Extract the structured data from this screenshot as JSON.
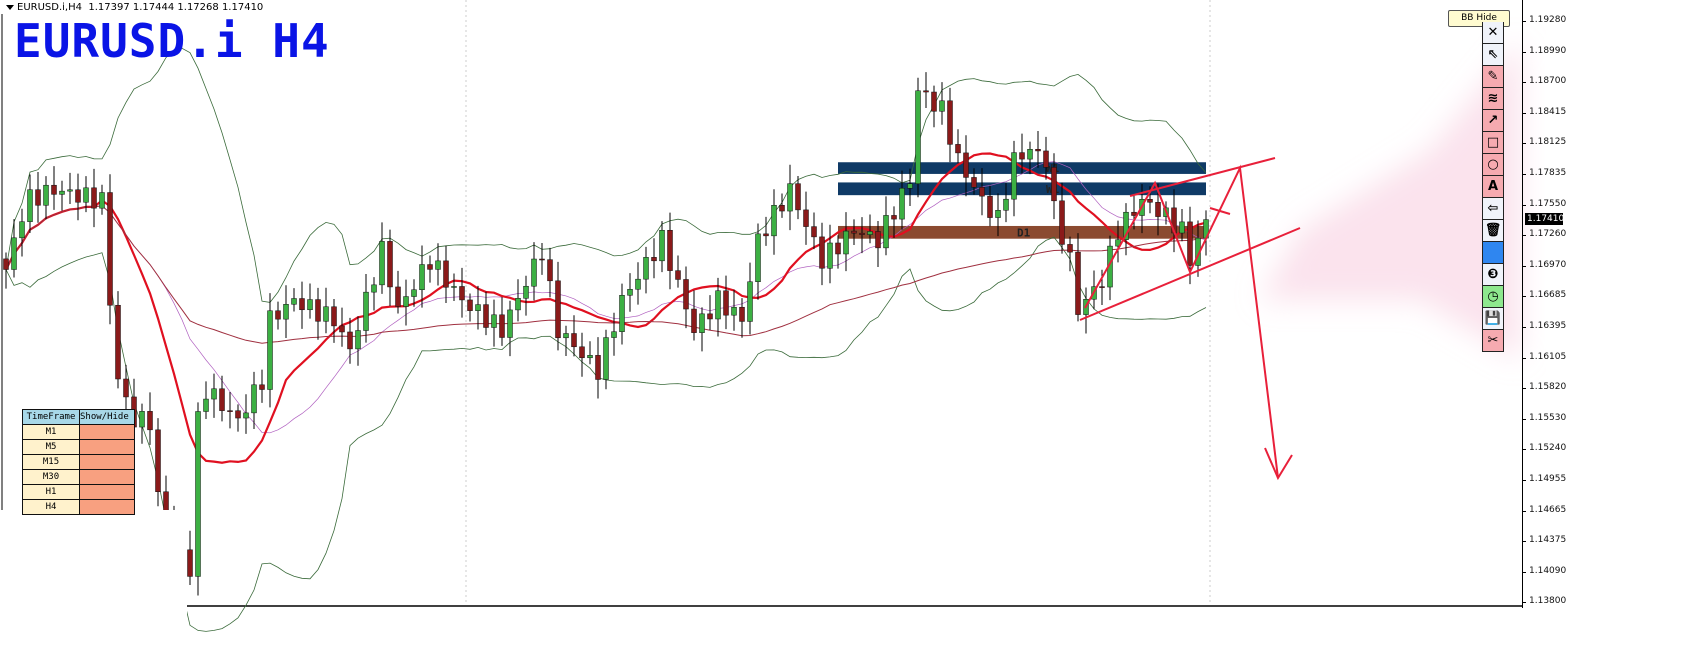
{
  "header": {
    "symbol": "EURUSD.i,H4",
    "ohlc": "1.17397 1.17444 1.17268 1.17410"
  },
  "title": "EURUSD.i H4",
  "bb_hide_label": "BB Hide",
  "toolbar": [
    {
      "icon": "close-icon",
      "glyph": "✕",
      "style": ""
    },
    {
      "icon": "pointer-icon",
      "glyph": "⇖",
      "style": ""
    },
    {
      "icon": "pencil-icon",
      "glyph": "✎",
      "style": "p"
    },
    {
      "icon": "wave-lines-icon",
      "glyph": "≋",
      "style": "p"
    },
    {
      "icon": "arrow-icon",
      "glyph": "↗",
      "style": "p"
    },
    {
      "icon": "rectangle-icon",
      "glyph": "□",
      "style": "p"
    },
    {
      "icon": "circle-icon",
      "glyph": "○",
      "style": "p"
    },
    {
      "icon": "text-icon",
      "glyph": "A",
      "style": "p"
    },
    {
      "icon": "bookmark-arrow-icon",
      "glyph": "⇦",
      "style": ""
    },
    {
      "icon": "trash-icon",
      "glyph": "🗑",
      "style": ""
    },
    {
      "icon": "color-swatch-icon",
      "glyph": "",
      "style": "blue"
    },
    {
      "icon": "number-three-icon",
      "glyph": "❸",
      "style": ""
    },
    {
      "icon": "clock-icon",
      "glyph": "◷",
      "style": "g"
    },
    {
      "icon": "save-icon",
      "glyph": "💾",
      "style": ""
    },
    {
      "icon": "scissors-icon",
      "glyph": "✂",
      "style": "p"
    }
  ],
  "price_axis": [
    "1.19280",
    "1.18990",
    "1.18700",
    "1.18415",
    "1.18125",
    "1.17835",
    "1.17550",
    "1.17260",
    "1.16970",
    "1.16685",
    "1.16395",
    "1.16105",
    "1.15820",
    "1.15530",
    "1.15240",
    "1.14955",
    "1.14665",
    "1.14375",
    "1.14090",
    "1.13800"
  ],
  "current_price": "1.17410",
  "timeframe_table": {
    "headers": [
      "TimeFrame",
      "Show/Hide"
    ],
    "rows": [
      "M1",
      "M5",
      "M15",
      "M30",
      "H1",
      "H4"
    ]
  },
  "zones": [
    {
      "label": "W1",
      "color": "#0f3a66",
      "top": 1.1795,
      "bottom": 1.1784
    },
    {
      "label": "W1",
      "color": "#0f3a66",
      "top": 1.1776,
      "bottom": 1.1764
    },
    {
      "label": "D1",
      "color": "#8b4a30",
      "top": 1.1735,
      "bottom": 1.1723
    }
  ],
  "colors": {
    "bull": "#3cb043",
    "bear": "#8b1a1a",
    "ma_fast": "#e01020",
    "ma_slow": "#a03040",
    "bands": "#3a6a3a",
    "drawing": "#e8203a"
  },
  "price_path": [
    [
      0,
      1.1694
    ],
    [
      2.5,
      1.1759
    ],
    [
      6,
      1.1769
    ],
    [
      12,
      1.1759
    ],
    [
      13,
      1.1665
    ],
    [
      14,
      1.159
    ],
    [
      16,
      1.1552
    ],
    [
      18,
      1.1552
    ],
    [
      19,
      1.1477
    ],
    [
      23,
      1.1411
    ],
    [
      24,
      1.1552
    ],
    [
      25,
      1.1581
    ],
    [
      29,
      1.1552
    ],
    [
      32,
      1.159
    ],
    [
      33,
      1.1647
    ],
    [
      36,
      1.1665
    ],
    [
      41,
      1.1647
    ],
    [
      43,
      1.1618
    ],
    [
      47,
      1.1712
    ],
    [
      49,
      1.1656
    ],
    [
      53,
      1.1703
    ],
    [
      57,
      1.1665
    ],
    [
      62,
      1.1637
    ],
    [
      67,
      1.1712
    ],
    [
      69,
      1.1637
    ],
    [
      74,
      1.1599
    ],
    [
      77,
      1.1665
    ],
    [
      82,
      1.1722
    ],
    [
      86,
      1.1637
    ],
    [
      89,
      1.1665
    ],
    [
      92,
      1.1647
    ],
    [
      94,
      1.1722
    ],
    [
      98,
      1.1769
    ],
    [
      102,
      1.1703
    ],
    [
      106,
      1.1731
    ],
    [
      109,
      1.1722
    ],
    [
      113,
      1.1778
    ],
    [
      114,
      1.1863
    ],
    [
      117,
      1.1844
    ],
    [
      119,
      1.1797
    ],
    [
      122,
      1.1759
    ],
    [
      124,
      1.1741
    ],
    [
      126,
      1.1797
    ],
    [
      128,
      1.1807
    ],
    [
      130,
      1.1797
    ],
    [
      131,
      1.175
    ],
    [
      133,
      1.1703
    ],
    [
      134,
      1.1656
    ],
    [
      137,
      1.1684
    ],
    [
      139,
      1.1731
    ],
    [
      142,
      1.1759
    ],
    [
      144,
      1.175
    ],
    [
      147,
      1.1731
    ],
    [
      148,
      1.1703
    ],
    [
      150,
      1.1741
    ]
  ]
}
